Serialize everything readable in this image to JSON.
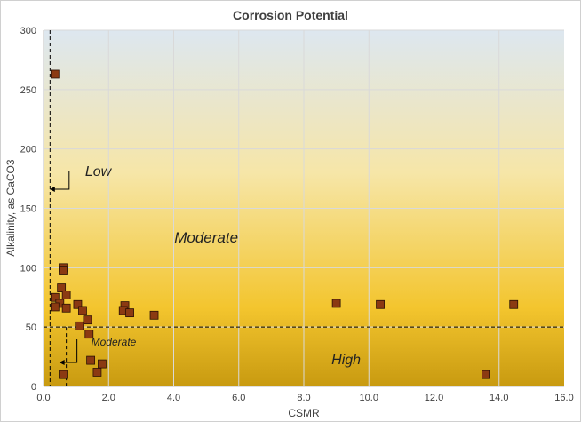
{
  "chart_data": {
    "type": "scatter",
    "title": "Corrosion Potential",
    "xlabel": "CSMR",
    "ylabel": "Alkalinity, as CaCO3",
    "xlim": [
      0,
      16
    ],
    "ylim": [
      0,
      300
    ],
    "x_ticks": [
      "0.0",
      "2.0",
      "4.0",
      "6.0",
      "8.0",
      "10.0",
      "12.0",
      "14.0",
      "16.0"
    ],
    "y_ticks": [
      "0",
      "50",
      "100",
      "150",
      "200",
      "250",
      "300"
    ],
    "grid": true,
    "marker_color": "#8B3A12",
    "background_gradient": [
      "#DDE7F0",
      "#F6E6A8",
      "#F3C52E",
      "#C89A10"
    ],
    "reference_lines": {
      "csmr": 0.2,
      "alkalinity": 50,
      "csmr_low_alkalinity": 0.7
    },
    "zone_labels": {
      "low": "Low",
      "moderate": "Moderate",
      "moderate_small": "Moderate",
      "high": "High"
    },
    "points": [
      {
        "x": 0.35,
        "y": 263
      },
      {
        "x": 0.6,
        "y": 100
      },
      {
        "x": 0.6,
        "y": 98
      },
      {
        "x": 0.55,
        "y": 83
      },
      {
        "x": 0.35,
        "y": 75
      },
      {
        "x": 0.7,
        "y": 77
      },
      {
        "x": 0.5,
        "y": 70
      },
      {
        "x": 0.35,
        "y": 67
      },
      {
        "x": 0.7,
        "y": 66
      },
      {
        "x": 1.05,
        "y": 69
      },
      {
        "x": 1.2,
        "y": 64
      },
      {
        "x": 1.35,
        "y": 56
      },
      {
        "x": 1.1,
        "y": 51
      },
      {
        "x": 1.4,
        "y": 44
      },
      {
        "x": 2.5,
        "y": 68
      },
      {
        "x": 2.45,
        "y": 64
      },
      {
        "x": 2.65,
        "y": 62
      },
      {
        "x": 3.4,
        "y": 60
      },
      {
        "x": 1.45,
        "y": 22
      },
      {
        "x": 1.8,
        "y": 19
      },
      {
        "x": 1.65,
        "y": 12
      },
      {
        "x": 0.6,
        "y": 10
      },
      {
        "x": 9.0,
        "y": 70
      },
      {
        "x": 10.35,
        "y": 69
      },
      {
        "x": 14.45,
        "y": 69
      },
      {
        "x": 13.6,
        "y": 10
      }
    ]
  }
}
